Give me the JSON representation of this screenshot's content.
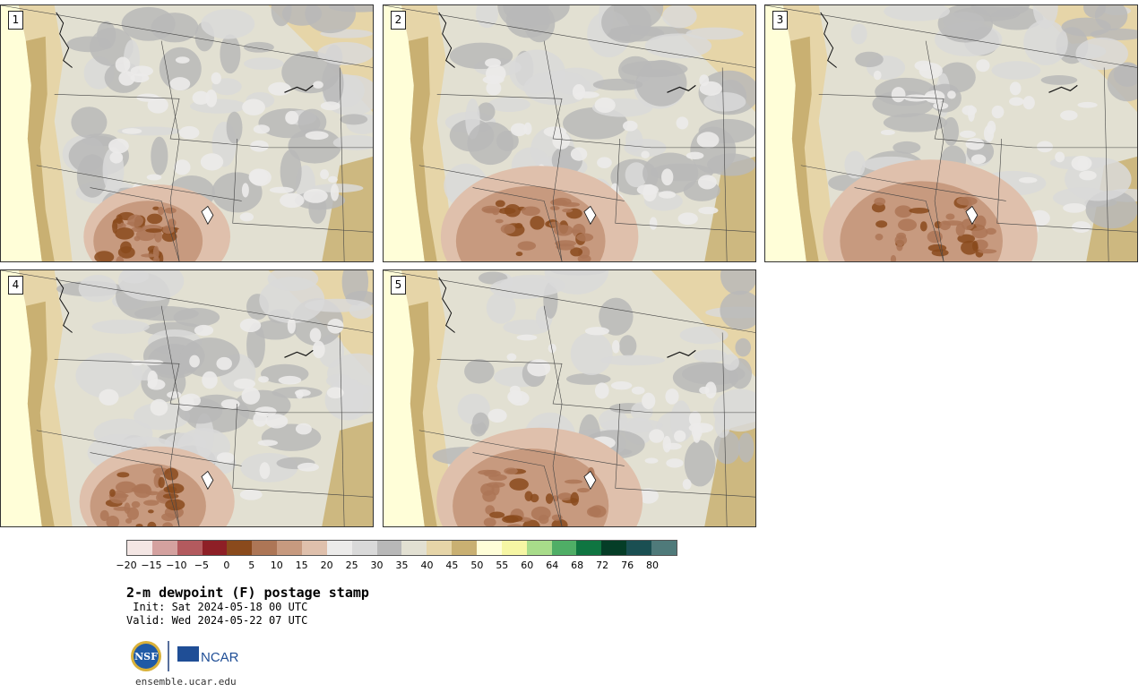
{
  "panels": [
    {
      "label": "1",
      "hot": 0.55
    },
    {
      "label": "2",
      "hot": 0.85
    },
    {
      "label": "3",
      "hot": 0.95
    },
    {
      "label": "4",
      "hot": 0.6
    },
    {
      "label": "5",
      "hot": 0.9
    }
  ],
  "colorbar": {
    "colors": [
      "#f4e6e4",
      "#d4a19f",
      "#b35a5e",
      "#8e1f26",
      "#8a4a1c",
      "#ad7656",
      "#c79a7f",
      "#dfc0ac",
      "#ecebea",
      "#d9d9d9",
      "#b8b8b8",
      "#e2e0d2",
      "#e6d5a8",
      "#c9b072",
      "#fffed8",
      "#f6f6a4",
      "#a8dc8a",
      "#4fae66",
      "#0f7541",
      "#053d27",
      "#1a4f52",
      "#4f7a7a"
    ],
    "tick_labels": [
      "−20",
      "−15",
      "−10",
      "−5",
      "0",
      "5",
      "10",
      "15",
      "20",
      "25",
      "30",
      "35",
      "40",
      "45",
      "50",
      "55",
      "60",
      "64",
      "68",
      "72",
      "76",
      "80"
    ]
  },
  "title": "2-m dewpoint (F) postage stamp",
  "init": " Init: Sat 2024-05-18 00 UTC",
  "valid": "Valid: Wed 2024-05-22 07 UTC",
  "logos": {
    "nsf": "NSF",
    "ncar": "NCAR"
  },
  "url": "ensemble.ucar.edu"
}
